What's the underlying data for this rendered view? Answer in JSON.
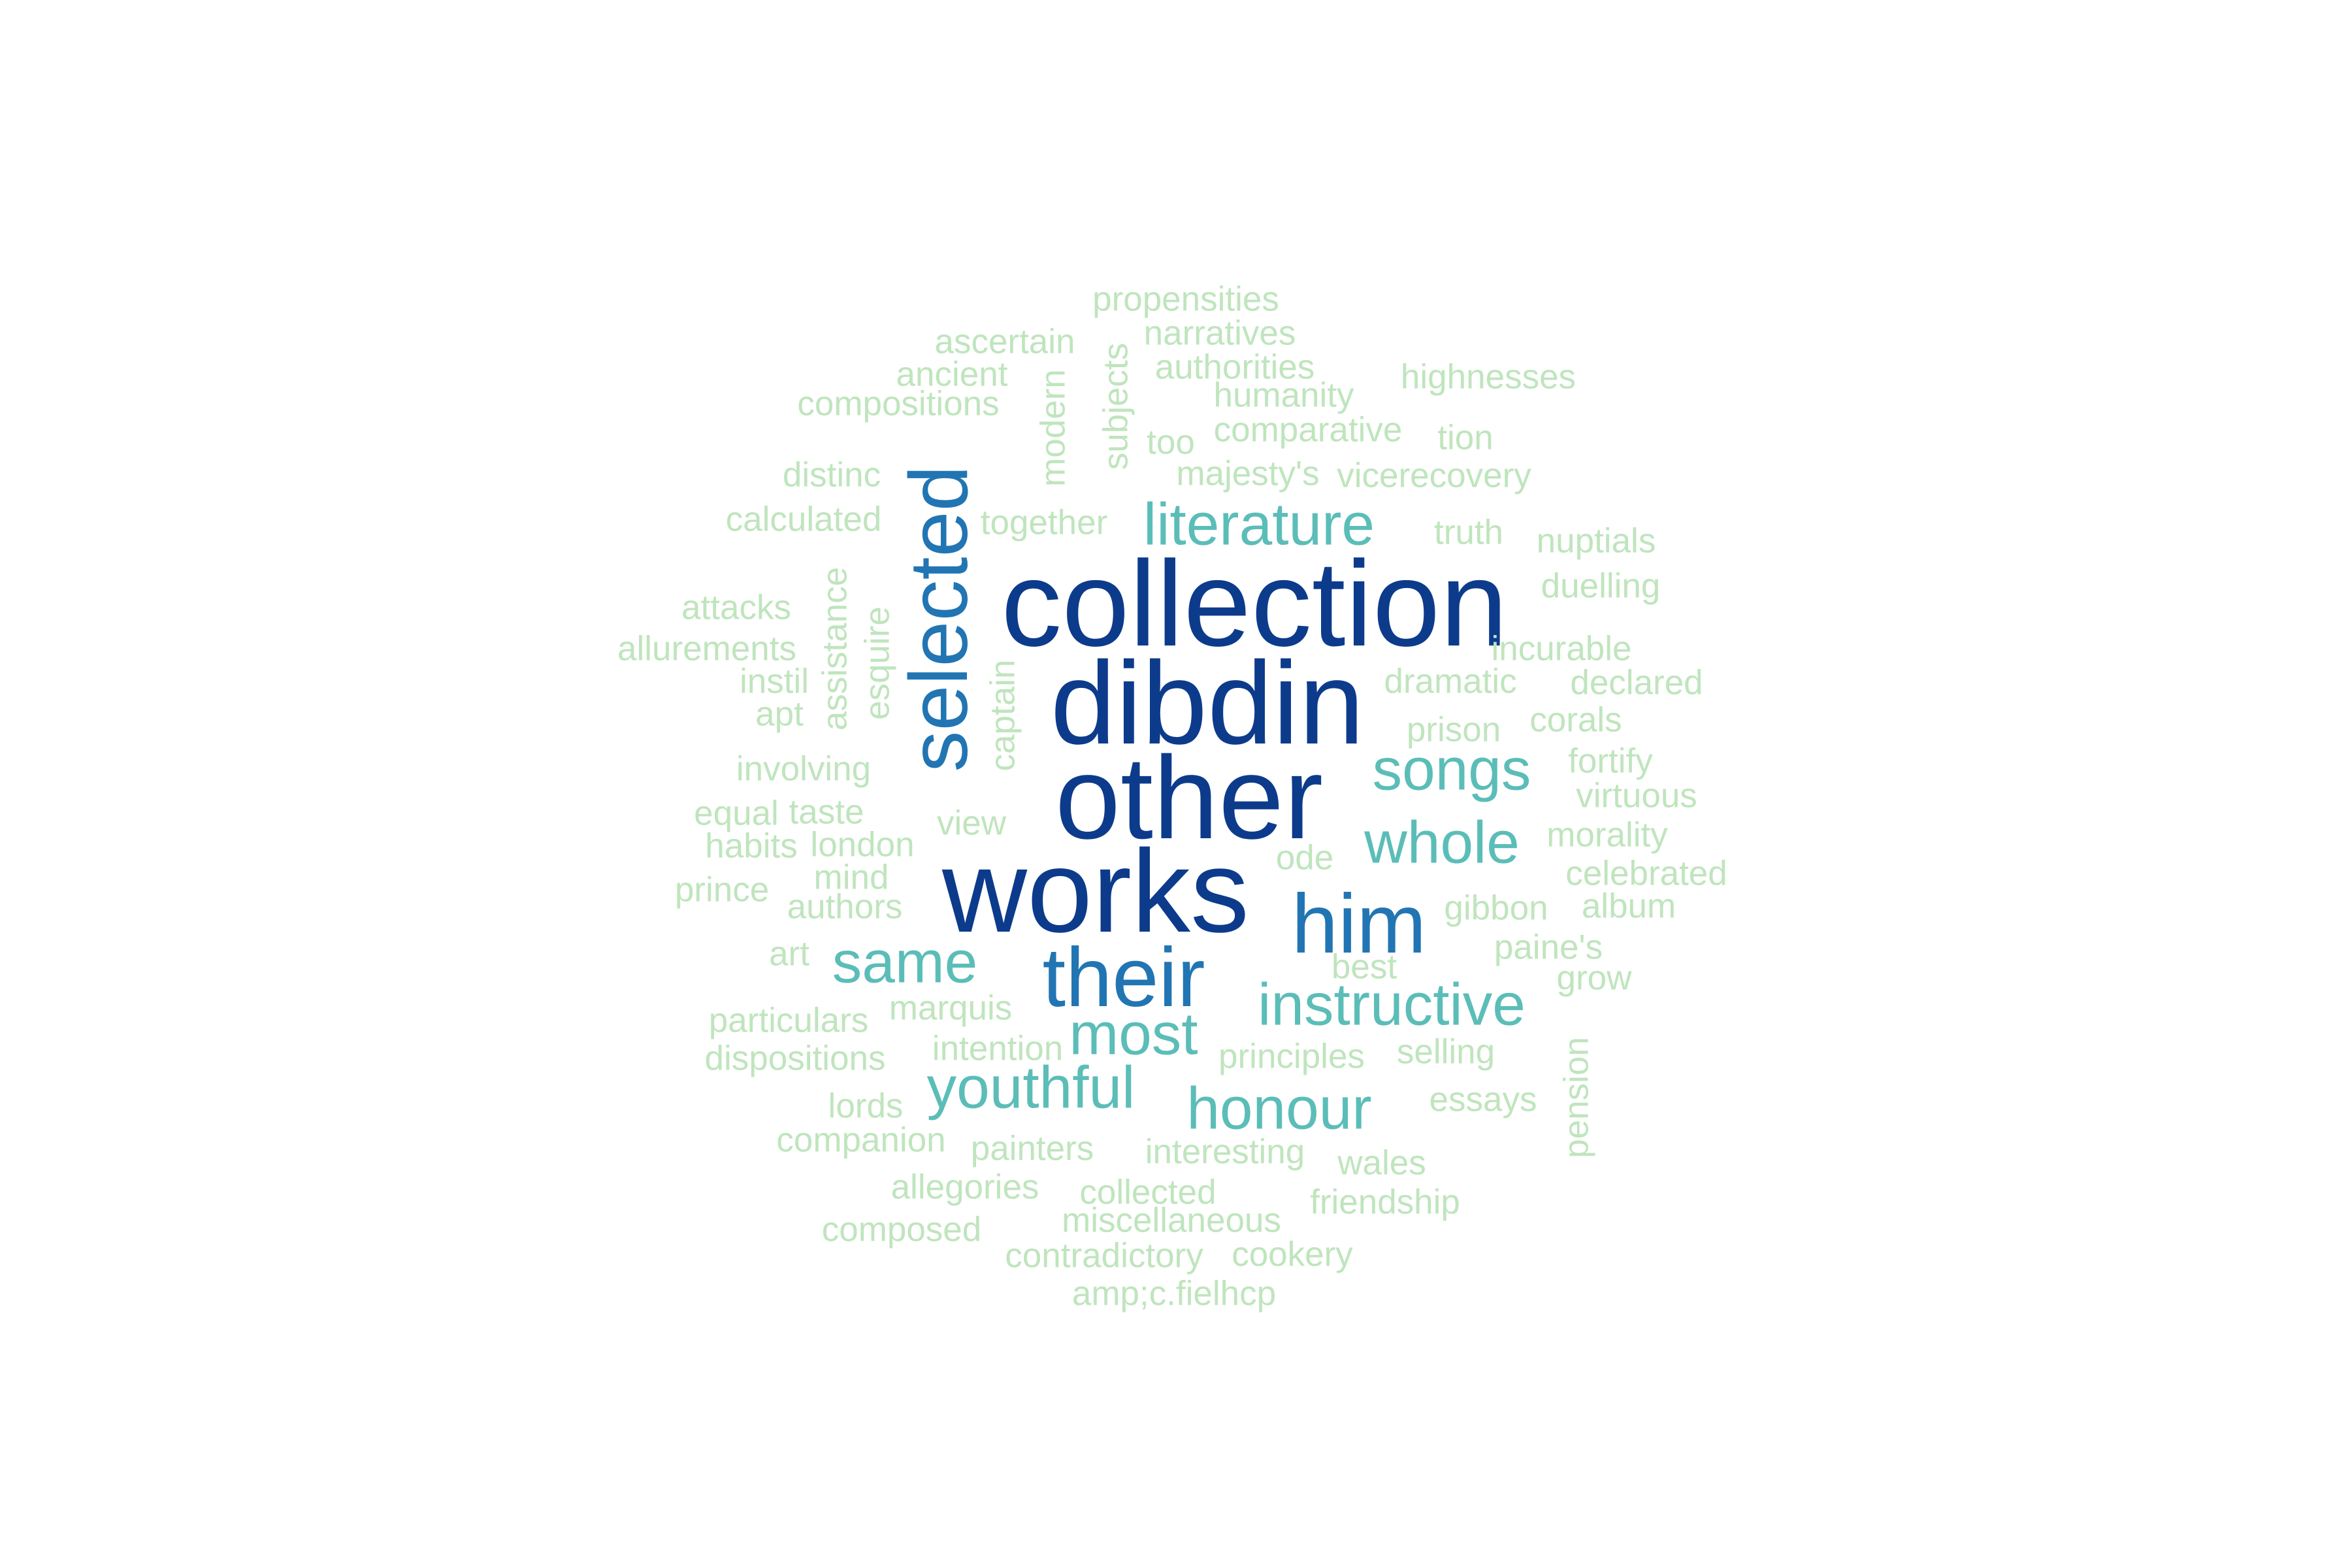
{
  "words": [
    {
      "text": "collection",
      "tier": 1
    },
    {
      "text": "dibdin",
      "tier": 1
    },
    {
      "text": "other",
      "tier": 1
    },
    {
      "text": "works",
      "tier": 1
    },
    {
      "text": "selected",
      "tier": 2
    },
    {
      "text": "him",
      "tier": 2
    },
    {
      "text": "their",
      "tier": 2
    },
    {
      "text": "literature",
      "tier": 3
    },
    {
      "text": "songs",
      "tier": 3
    },
    {
      "text": "whole",
      "tier": 3
    },
    {
      "text": "same",
      "tier": 3
    },
    {
      "text": "instructive",
      "tier": 3
    },
    {
      "text": "most",
      "tier": 3
    },
    {
      "text": "youthful",
      "tier": 3
    },
    {
      "text": "honour",
      "tier": 3
    },
    {
      "text": "propensities",
      "tier": 4
    },
    {
      "text": "narratives",
      "tier": 4
    },
    {
      "text": "ascertain",
      "tier": 4
    },
    {
      "text": "authorities",
      "tier": 4
    },
    {
      "text": "ancient",
      "tier": 4
    },
    {
      "text": "highnesses",
      "tier": 4
    },
    {
      "text": "humanity",
      "tier": 4
    },
    {
      "text": "compositions",
      "tier": 4
    },
    {
      "text": "modern",
      "tier": 4
    },
    {
      "text": "subjects",
      "tier": 4
    },
    {
      "text": "comparative",
      "tier": 4
    },
    {
      "text": "too",
      "tier": 4
    },
    {
      "text": "tion",
      "tier": 4
    },
    {
      "text": "distinc",
      "tier": 4
    },
    {
      "text": "majesty's",
      "tier": 4
    },
    {
      "text": "vicerecovery",
      "tier": 4
    },
    {
      "text": "calculated",
      "tier": 4
    },
    {
      "text": "together",
      "tier": 4
    },
    {
      "text": "truth",
      "tier": 4
    },
    {
      "text": "nuptials",
      "tier": 4
    },
    {
      "text": "duelling",
      "tier": 4
    },
    {
      "text": "attacks",
      "tier": 4
    },
    {
      "text": "assistance",
      "tier": 4
    },
    {
      "text": "allurements",
      "tier": 4
    },
    {
      "text": "esquire",
      "tier": 4
    },
    {
      "text": "incurable",
      "tier": 4
    },
    {
      "text": "instil",
      "tier": 4
    },
    {
      "text": "dramatic",
      "tier": 4
    },
    {
      "text": "declared",
      "tier": 4
    },
    {
      "text": "apt",
      "tier": 4
    },
    {
      "text": "captain",
      "tier": 4
    },
    {
      "text": "corals",
      "tier": 4
    },
    {
      "text": "prison",
      "tier": 4
    },
    {
      "text": "involving",
      "tier": 4
    },
    {
      "text": "fortify",
      "tier": 4
    },
    {
      "text": "virtuous",
      "tier": 4
    },
    {
      "text": "equal",
      "tier": 4
    },
    {
      "text": "taste",
      "tier": 4
    },
    {
      "text": "view",
      "tier": 4
    },
    {
      "text": "habits",
      "tier": 4
    },
    {
      "text": "london",
      "tier": 4
    },
    {
      "text": "morality",
      "tier": 4
    },
    {
      "text": "ode",
      "tier": 4
    },
    {
      "text": "celebrated",
      "tier": 4
    },
    {
      "text": "mind",
      "tier": 4
    },
    {
      "text": "prince",
      "tier": 4
    },
    {
      "text": "authors",
      "tier": 4
    },
    {
      "text": "gibbon",
      "tier": 4
    },
    {
      "text": "album",
      "tier": 4
    },
    {
      "text": "art",
      "tier": 4
    },
    {
      "text": "best",
      "tier": 4
    },
    {
      "text": "paine's",
      "tier": 4
    },
    {
      "text": "grow",
      "tier": 4
    },
    {
      "text": "particulars",
      "tier": 4
    },
    {
      "text": "marquis",
      "tier": 4
    },
    {
      "text": "intention",
      "tier": 4
    },
    {
      "text": "dispositions",
      "tier": 4
    },
    {
      "text": "principles",
      "tier": 4
    },
    {
      "text": "selling",
      "tier": 4
    },
    {
      "text": "pension",
      "tier": 4
    },
    {
      "text": "lords",
      "tier": 4
    },
    {
      "text": "essays",
      "tier": 4
    },
    {
      "text": "companion",
      "tier": 4
    },
    {
      "text": "painters",
      "tier": 4
    },
    {
      "text": "interesting",
      "tier": 4
    },
    {
      "text": "wales",
      "tier": 4
    },
    {
      "text": "allegories",
      "tier": 4
    },
    {
      "text": "collected",
      "tier": 4
    },
    {
      "text": "friendship",
      "tier": 4
    },
    {
      "text": "miscellaneous",
      "tier": 4
    },
    {
      "text": "composed",
      "tier": 4
    },
    {
      "text": "contradictory",
      "tier": 4
    },
    {
      "text": "cookery",
      "tier": 4
    },
    {
      "text": "amp;c.fielhcp",
      "tier": 4
    }
  ],
  "palette": {
    "tier1": "#0d3b8c",
    "tier2": "#2275b3",
    "tier3": "#5bbdb8",
    "tier4": "#bfe5bd"
  }
}
